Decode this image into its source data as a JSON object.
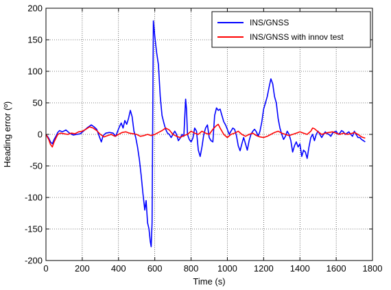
{
  "chart_data": {
    "type": "line",
    "xlabel": "Time (s)",
    "ylabel": "Heading error (º)",
    "xlim": [
      0,
      1800
    ],
    "ylim": [
      -200,
      200
    ],
    "xticks": [
      "0",
      "200",
      "400",
      "600",
      "800",
      "1000",
      "1200",
      "1400",
      "1600",
      "1800"
    ],
    "yticks": [
      "200",
      "150",
      "100",
      "50",
      "0",
      "-50",
      "-100",
      "-150",
      "-200"
    ],
    "grid": true,
    "legend_position": "top-right",
    "series": [
      {
        "name": "INS/GNSS",
        "color": "#0000ff",
        "points": [
          [
            0,
            0
          ],
          [
            15,
            -6
          ],
          [
            25,
            -12
          ],
          [
            35,
            -15
          ],
          [
            45,
            -8
          ],
          [
            55,
            -3
          ],
          [
            65,
            3
          ],
          [
            75,
            6
          ],
          [
            90,
            4
          ],
          [
            110,
            7
          ],
          [
            130,
            2
          ],
          [
            150,
            -1
          ],
          [
            170,
            0
          ],
          [
            190,
            1
          ],
          [
            210,
            6
          ],
          [
            230,
            11
          ],
          [
            250,
            15
          ],
          [
            265,
            12
          ],
          [
            280,
            8
          ],
          [
            295,
            -4
          ],
          [
            305,
            -12
          ],
          [
            315,
            -2
          ],
          [
            330,
            2
          ],
          [
            350,
            3
          ],
          [
            370,
            2
          ],
          [
            385,
            -3
          ],
          [
            395,
            5
          ],
          [
            405,
            12
          ],
          [
            415,
            18
          ],
          [
            425,
            10
          ],
          [
            435,
            22
          ],
          [
            445,
            16
          ],
          [
            455,
            25
          ],
          [
            465,
            38
          ],
          [
            475,
            28
          ],
          [
            485,
            5
          ],
          [
            495,
            -5
          ],
          [
            505,
            -20
          ],
          [
            515,
            -40
          ],
          [
            525,
            -65
          ],
          [
            535,
            -95
          ],
          [
            545,
            -120
          ],
          [
            552,
            -105
          ],
          [
            560,
            -140
          ],
          [
            568,
            -150
          ],
          [
            575,
            -170
          ],
          [
            580,
            -178
          ],
          [
            585,
            -140
          ],
          [
            588,
            0
          ],
          [
            592,
            180
          ],
          [
            600,
            155
          ],
          [
            610,
            130
          ],
          [
            620,
            110
          ],
          [
            630,
            60
          ],
          [
            640,
            30
          ],
          [
            650,
            18
          ],
          [
            660,
            8
          ],
          [
            670,
            2
          ],
          [
            680,
            0
          ],
          [
            690,
            -5
          ],
          [
            700,
            0
          ],
          [
            710,
            5
          ],
          [
            720,
            0
          ],
          [
            730,
            -10
          ],
          [
            740,
            -6
          ],
          [
            750,
            0
          ],
          [
            760,
            -3
          ],
          [
            770,
            56
          ],
          [
            775,
            40
          ],
          [
            780,
            0
          ],
          [
            790,
            -8
          ],
          [
            800,
            -12
          ],
          [
            810,
            -6
          ],
          [
            820,
            10
          ],
          [
            830,
            5
          ],
          [
            840,
            -25
          ],
          [
            850,
            -35
          ],
          [
            860,
            -20
          ],
          [
            870,
            0
          ],
          [
            880,
            10
          ],
          [
            890,
            15
          ],
          [
            900,
            -5
          ],
          [
            910,
            -10
          ],
          [
            920,
            -12
          ],
          [
            930,
            30
          ],
          [
            940,
            42
          ],
          [
            950,
            38
          ],
          [
            960,
            40
          ],
          [
            970,
            30
          ],
          [
            980,
            20
          ],
          [
            990,
            15
          ],
          [
            1000,
            8
          ],
          [
            1010,
            0
          ],
          [
            1020,
            5
          ],
          [
            1030,
            10
          ],
          [
            1040,
            8
          ],
          [
            1050,
            -2
          ],
          [
            1060,
            -18
          ],
          [
            1070,
            -26
          ],
          [
            1080,
            -15
          ],
          [
            1090,
            -5
          ],
          [
            1100,
            -15
          ],
          [
            1110,
            -25
          ],
          [
            1120,
            -10
          ],
          [
            1130,
            0
          ],
          [
            1140,
            5
          ],
          [
            1150,
            8
          ],
          [
            1160,
            4
          ],
          [
            1170,
            -3
          ],
          [
            1180,
            5
          ],
          [
            1190,
            20
          ],
          [
            1200,
            40
          ],
          [
            1210,
            50
          ],
          [
            1220,
            60
          ],
          [
            1230,
            75
          ],
          [
            1240,
            88
          ],
          [
            1250,
            80
          ],
          [
            1260,
            60
          ],
          [
            1270,
            50
          ],
          [
            1280,
            25
          ],
          [
            1290,
            10
          ],
          [
            1300,
            0
          ],
          [
            1310,
            -8
          ],
          [
            1320,
            -3
          ],
          [
            1330,
            5
          ],
          [
            1340,
            0
          ],
          [
            1350,
            -10
          ],
          [
            1360,
            -28
          ],
          [
            1370,
            -18
          ],
          [
            1380,
            -12
          ],
          [
            1390,
            -20
          ],
          [
            1400,
            -15
          ],
          [
            1410,
            -35
          ],
          [
            1420,
            -25
          ],
          [
            1430,
            -28
          ],
          [
            1440,
            -38
          ],
          [
            1450,
            -20
          ],
          [
            1460,
            -5
          ],
          [
            1470,
            0
          ],
          [
            1480,
            -10
          ],
          [
            1490,
            0
          ],
          [
            1500,
            5
          ],
          [
            1510,
            0
          ],
          [
            1520,
            -5
          ],
          [
            1530,
            0
          ],
          [
            1540,
            4
          ],
          [
            1550,
            1
          ],
          [
            1560,
            0
          ],
          [
            1570,
            -3
          ],
          [
            1580,
            2
          ],
          [
            1590,
            4
          ],
          [
            1600,
            5
          ],
          [
            1610,
            0
          ],
          [
            1620,
            2
          ],
          [
            1630,
            6
          ],
          [
            1640,
            4
          ],
          [
            1650,
            0
          ],
          [
            1660,
            2
          ],
          [
            1670,
            4
          ],
          [
            1680,
            0
          ],
          [
            1690,
            -3
          ],
          [
            1700,
            5
          ],
          [
            1710,
            0
          ],
          [
            1720,
            -5
          ],
          [
            1730,
            -5
          ],
          [
            1740,
            -8
          ],
          [
            1750,
            -10
          ],
          [
            1760,
            -12
          ]
        ]
      },
      {
        "name": "INS/GNSS with innov test",
        "color": "#ff0000",
        "points": [
          [
            0,
            0
          ],
          [
            15,
            -8
          ],
          [
            25,
            -16
          ],
          [
            35,
            -20
          ],
          [
            45,
            -12
          ],
          [
            55,
            -6
          ],
          [
            65,
            0
          ],
          [
            80,
            2
          ],
          [
            100,
            1
          ],
          [
            120,
            0
          ],
          [
            140,
            2
          ],
          [
            160,
            1
          ],
          [
            180,
            4
          ],
          [
            200,
            5
          ],
          [
            220,
            8
          ],
          [
            240,
            12
          ],
          [
            260,
            10
          ],
          [
            280,
            6
          ],
          [
            300,
            0
          ],
          [
            320,
            -4
          ],
          [
            340,
            -2
          ],
          [
            360,
            0
          ],
          [
            380,
            -3
          ],
          [
            400,
            0
          ],
          [
            420,
            3
          ],
          [
            440,
            4
          ],
          [
            460,
            2
          ],
          [
            480,
            1
          ],
          [
            500,
            0
          ],
          [
            520,
            -3
          ],
          [
            540,
            -2
          ],
          [
            560,
            0
          ],
          [
            580,
            -2
          ],
          [
            600,
            0
          ],
          [
            620,
            3
          ],
          [
            640,
            6
          ],
          [
            660,
            10
          ],
          [
            680,
            7
          ],
          [
            700,
            0
          ],
          [
            720,
            -3
          ],
          [
            740,
            -5
          ],
          [
            760,
            -2
          ],
          [
            780,
            0
          ],
          [
            800,
            5
          ],
          [
            820,
            2
          ],
          [
            840,
            0
          ],
          [
            860,
            5
          ],
          [
            880,
            2
          ],
          [
            900,
            0
          ],
          [
            920,
            8
          ],
          [
            940,
            14
          ],
          [
            950,
            16
          ],
          [
            960,
            10
          ],
          [
            980,
            0
          ],
          [
            1000,
            -5
          ],
          [
            1020,
            0
          ],
          [
            1040,
            2
          ],
          [
            1060,
            5
          ],
          [
            1080,
            0
          ],
          [
            1100,
            -3
          ],
          [
            1120,
            0
          ],
          [
            1140,
            2
          ],
          [
            1160,
            -2
          ],
          [
            1180,
            -4
          ],
          [
            1200,
            -5
          ],
          [
            1220,
            -3
          ],
          [
            1240,
            0
          ],
          [
            1260,
            3
          ],
          [
            1280,
            5
          ],
          [
            1300,
            2
          ],
          [
            1320,
            0
          ],
          [
            1340,
            -2
          ],
          [
            1360,
            0
          ],
          [
            1380,
            2
          ],
          [
            1400,
            4
          ],
          [
            1420,
            2
          ],
          [
            1440,
            0
          ],
          [
            1460,
            5
          ],
          [
            1470,
            10
          ],
          [
            1480,
            9
          ],
          [
            1500,
            4
          ],
          [
            1520,
            0
          ],
          [
            1540,
            2
          ],
          [
            1560,
            3
          ],
          [
            1580,
            4
          ],
          [
            1600,
            2
          ],
          [
            1620,
            0
          ],
          [
            1640,
            2
          ],
          [
            1660,
            0
          ],
          [
            1680,
            1
          ],
          [
            1700,
            3
          ],
          [
            1720,
            0
          ],
          [
            1740,
            -4
          ],
          [
            1760,
            -6
          ]
        ]
      }
    ]
  }
}
